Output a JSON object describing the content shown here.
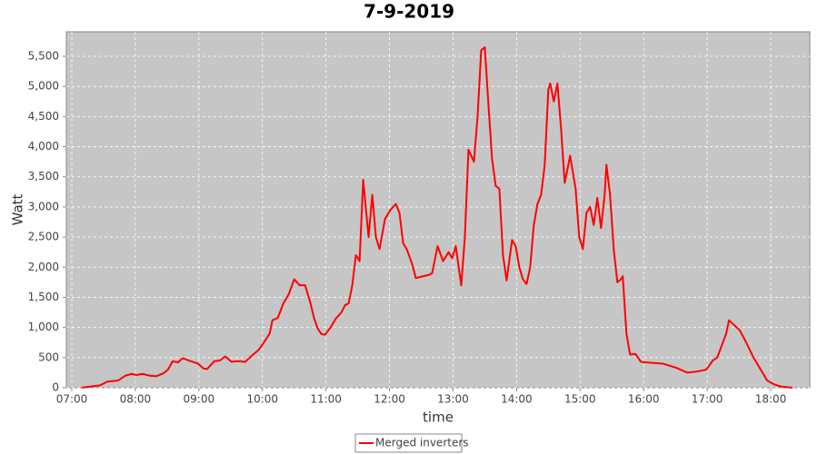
{
  "chart_data": {
    "type": "line",
    "title": "7-9-2019",
    "x_label": "time",
    "y_label": "Watt",
    "xlim": [
      6.914,
      18.615
    ],
    "ylim": [
      0,
      5907
    ],
    "xticks": [
      {
        "value": 7,
        "label": "07:00"
      },
      {
        "value": 8,
        "label": "08:00"
      },
      {
        "value": 9,
        "label": "09:00"
      },
      {
        "value": 10,
        "label": "10:00"
      },
      {
        "value": 11,
        "label": "11:00"
      },
      {
        "value": 12,
        "label": "12:00"
      },
      {
        "value": 13,
        "label": "13:00"
      },
      {
        "value": 14,
        "label": "14:00"
      },
      {
        "value": 15,
        "label": "15:00"
      },
      {
        "value": 16,
        "label": "16:00"
      },
      {
        "value": 17,
        "label": "17:00"
      },
      {
        "value": 18,
        "label": "18:00"
      }
    ],
    "yticks": [
      0,
      500,
      {
        "value": 1000,
        "label": "1,000"
      },
      {
        "value": 1500,
        "label": "1,500"
      },
      {
        "value": 2000,
        "label": "2,000"
      },
      {
        "value": 2500,
        "label": "2,500"
      },
      {
        "value": 3000,
        "label": "3,000"
      },
      {
        "value": 3500,
        "label": "3,500"
      },
      {
        "value": 4000,
        "label": "4,000"
      },
      {
        "value": 4500,
        "label": "4,500"
      },
      {
        "value": 5000,
        "label": "5,000"
      },
      {
        "value": 5500,
        "label": "5,500"
      }
    ],
    "grid": true,
    "legend": "bottom",
    "x": [
      7.157,
      7.3,
      7.443,
      7.557,
      7.729,
      7.843,
      7.943,
      8.014,
      8.114,
      8.229,
      8.329,
      8.443,
      8.514,
      8.586,
      8.671,
      8.743,
      8.871,
      8.986,
      9.071,
      9.129,
      9.243,
      9.329,
      9.414,
      9.514,
      9.614,
      9.729,
      9.843,
      9.943,
      10.029,
      10.114,
      10.157,
      10.243,
      10.329,
      10.414,
      10.5,
      10.586,
      10.671,
      10.757,
      10.814,
      10.871,
      10.929,
      10.986,
      11.071,
      11.157,
      11.243,
      11.3,
      11.357,
      11.414,
      11.471,
      11.529,
      11.586,
      11.671,
      11.729,
      11.786,
      11.843,
      11.929,
      12.014,
      12.1,
      12.157,
      12.214,
      12.271,
      12.357,
      12.414,
      12.529,
      12.614,
      12.671,
      12.757,
      12.843,
      12.929,
      12.986,
      13.043,
      13.129,
      13.186,
      13.243,
      13.329,
      13.386,
      13.443,
      13.5,
      13.557,
      13.614,
      13.671,
      13.729,
      13.786,
      13.843,
      13.929,
      13.986,
      14.043,
      14.1,
      14.157,
      14.214,
      14.271,
      14.329,
      14.386,
      14.443,
      14.5,
      14.529,
      14.586,
      14.643,
      14.7,
      14.757,
      14.843,
      14.929,
      14.986,
      15.043,
      15.1,
      15.157,
      15.214,
      15.271,
      15.329,
      15.386,
      15.414,
      15.471,
      15.529,
      15.586,
      15.643,
      15.671,
      15.729,
      15.786,
      15.871,
      15.957,
      16.043,
      16.3,
      16.514,
      16.686,
      16.843,
      16.986,
      17.086,
      17.157,
      17.229,
      17.3,
      17.343,
      17.414,
      17.514,
      17.614,
      17.729,
      17.843,
      17.943,
      18.043,
      18.157,
      18.343
    ],
    "series": [
      {
        "name": "Merged inverters",
        "color": "#ff0000",
        "values": [
          0,
          20,
          40,
          100,
          120,
          200,
          230,
          210,
          230,
          200,
          190,
          240,
          300,
          440,
          420,
          490,
          440,
          400,
          320,
          310,
          440,
          450,
          520,
          430,
          440,
          430,
          540,
          630,
          760,
          900,
          1120,
          1160,
          1400,
          1550,
          1800,
          1700,
          1700,
          1400,
          1150,
          980,
          890,
          880,
          1000,
          1150,
          1250,
          1370,
          1400,
          1700,
          2200,
          2100,
          3450,
          2500,
          3200,
          2500,
          2300,
          2800,
          2950,
          3050,
          2900,
          2400,
          2300,
          2050,
          1820,
          1850,
          1870,
          1900,
          2350,
          2100,
          2250,
          2150,
          2350,
          1700,
          2500,
          3950,
          3750,
          4500,
          5600,
          5650,
          4700,
          3800,
          3350,
          3300,
          2200,
          1780,
          2450,
          2350,
          2000,
          1800,
          1720,
          2000,
          2700,
          3050,
          3200,
          3700,
          4950,
          5050,
          4750,
          5050,
          4300,
          3400,
          3850,
          3300,
          2500,
          2300,
          2900,
          3000,
          2700,
          3150,
          2650,
          3200,
          3700,
          3200,
          2300,
          1750,
          1800,
          1850,
          900,
          550,
          560,
          430,
          420,
          400,
          330,
          250,
          270,
          300,
          450,
          500,
          700,
          900,
          1120,
          1050,
          950,
          750,
          500,
          300,
          120,
          60,
          20,
          0
        ]
      }
    ]
  }
}
